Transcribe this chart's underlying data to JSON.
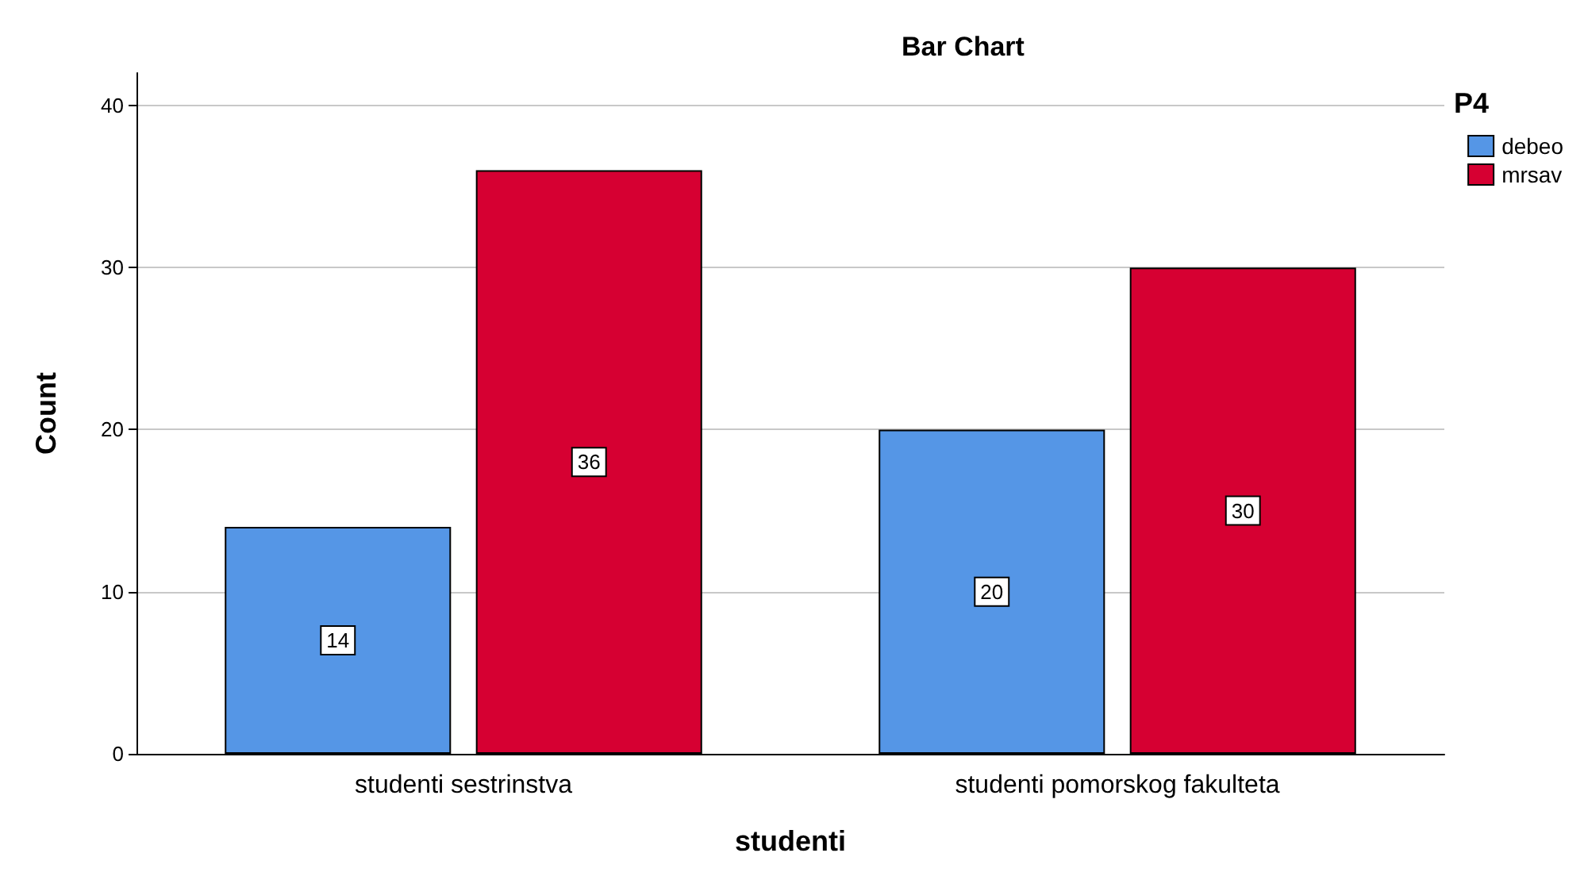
{
  "chart_data": {
    "type": "bar",
    "title": "Bar Chart",
    "xlabel": "studenti",
    "ylabel": "Count",
    "legend_title": "P4",
    "categories": [
      "studenti sestrinstva",
      "studenti pomorskog fakulteta"
    ],
    "series": [
      {
        "name": "debeo",
        "color": "#5596e6",
        "values": [
          14,
          20
        ]
      },
      {
        "name": "mrsav",
        "color": "#d60032",
        "values": [
          36,
          30
        ]
      }
    ],
    "ylim": [
      0,
      42
    ],
    "yticks": [
      0,
      10,
      20,
      30,
      40
    ],
    "grid": "y",
    "legend": "top right",
    "data_labels": true
  }
}
